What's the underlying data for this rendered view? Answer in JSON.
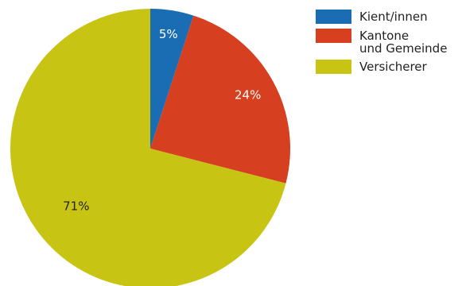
{
  "chart_data": {
    "type": "pie",
    "title": "",
    "slices": [
      {
        "name": "Kient/innen",
        "label": "Kient/innen",
        "value": 5,
        "value_label": "5%",
        "color": "#1a6db3",
        "label_color": "#ffffff"
      },
      {
        "name": "Kantone und Gemeinde",
        "label": "Kantone\nund Gemeinde",
        "value": 24,
        "value_label": "24%",
        "color": "#d63f1f",
        "label_color": "#ffffff"
      },
      {
        "name": "Versicherer",
        "label": "Versicherer",
        "value": 71,
        "value_label": "71%",
        "color": "#c8c414",
        "label_color": "#222222"
      }
    ],
    "start_angle": "12 o'clock",
    "direction": "clockwise",
    "legend_position": "top-right"
  }
}
